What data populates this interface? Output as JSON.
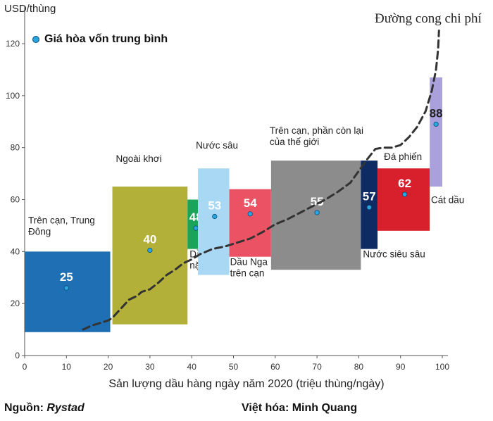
{
  "chart_data": {
    "type": "bar",
    "ylabel": "USD/thùng",
    "xlabel": "Sản lượng dầu hàng ngày năm 2020 (triệu thùng/ngày)",
    "xlim": [
      0,
      100
    ],
    "ylim": [
      0,
      125
    ],
    "xticks": [
      0,
      10,
      20,
      30,
      40,
      50,
      60,
      70,
      80,
      90,
      100
    ],
    "yticks": [
      0,
      20,
      40,
      60,
      80,
      100,
      120
    ],
    "legend": "Giá hòa vốn trung bình",
    "curve_label": "Đường cong chi phí",
    "segments": [
      {
        "name": "Trên cạn, Trung Đông",
        "x0": 0,
        "x1": 20.5,
        "low": 9,
        "high": 40,
        "avg": 25,
        "avg_x": 10,
        "avg_y": 26,
        "color": "#1f6fb5"
      },
      {
        "name": "Ngoài khơi",
        "x0": 21,
        "x1": 39,
        "low": 12,
        "high": 65,
        "avg": 40,
        "avg_x": 30,
        "avg_y": 40.5,
        "color": "#b2b038"
      },
      {
        "name": "Dầu nặng",
        "x0": 39,
        "x1": 41.5,
        "low": 41,
        "high": 60,
        "avg": 48,
        "avg_x": 41,
        "avg_y": 49,
        "color": "#1aa35a"
      },
      {
        "name": "Nước sâu",
        "x0": 41.5,
        "x1": 49,
        "low": 31,
        "high": 72,
        "avg": 53,
        "avg_x": 45.5,
        "avg_y": 53.5,
        "color": "#a9d8f5"
      },
      {
        "name": "Dầu Nga trên cạn",
        "x0": 49,
        "x1": 59,
        "low": 38,
        "high": 64,
        "avg": 54,
        "avg_x": 54,
        "avg_y": 54.5,
        "color": "#eb5364"
      },
      {
        "name": "Trên cạn, phần còn lại của thế giới",
        "x0": 59,
        "x1": 80.5,
        "low": 33,
        "high": 75,
        "avg": 55,
        "avg_x": 70,
        "avg_y": 55,
        "color": "#8c8c8c"
      },
      {
        "name": "Nước siêu sâu",
        "x0": 80.5,
        "x1": 84.5,
        "low": 41,
        "high": 75,
        "avg": 57,
        "avg_x": 82.5,
        "avg_y": 57,
        "color": "#0e2c63"
      },
      {
        "name": "Đá phiến",
        "x0": 84.5,
        "x1": 97,
        "low": 48,
        "high": 72,
        "avg": 62,
        "avg_x": 91,
        "avg_y": 62,
        "color": "#d8202c"
      },
      {
        "name": "Cát dầu",
        "x0": 97,
        "x1": 100,
        "low": 65,
        "high": 107,
        "avg": 88,
        "avg_x": 98.5,
        "avg_y": 89,
        "color": "#a9a0dc"
      }
    ],
    "cost_curve": [
      [
        14,
        10
      ],
      [
        16,
        11.5
      ],
      [
        18,
        12.5
      ],
      [
        20,
        13.5
      ],
      [
        21,
        14.5
      ],
      [
        23,
        18
      ],
      [
        25,
        21.5
      ],
      [
        27,
        23
      ],
      [
        28,
        24.5
      ],
      [
        30,
        25.5
      ],
      [
        32,
        28
      ],
      [
        34,
        31
      ],
      [
        36,
        33
      ],
      [
        38,
        35.5
      ],
      [
        40,
        37
      ],
      [
        42,
        39
      ],
      [
        45,
        41
      ],
      [
        48,
        42
      ],
      [
        51,
        43.5
      ],
      [
        54,
        45
      ],
      [
        57,
        47.5
      ],
      [
        60,
        50.5
      ],
      [
        63,
        52.5
      ],
      [
        66,
        55
      ],
      [
        69,
        57.5
      ],
      [
        72,
        60
      ],
      [
        75,
        63
      ],
      [
        78,
        66.5
      ],
      [
        80,
        71
      ],
      [
        82,
        75.5
      ],
      [
        84,
        79.5
      ],
      [
        86,
        80
      ],
      [
        88,
        80
      ],
      [
        90,
        81
      ],
      [
        92,
        84
      ],
      [
        94,
        88
      ],
      [
        96,
        94
      ],
      [
        97.5,
        102
      ],
      [
        98.5,
        110
      ],
      [
        99,
        118
      ],
      [
        99.2,
        125
      ]
    ]
  },
  "footer": {
    "source_prefix": "Nguồn: ",
    "source_name": "Rystad",
    "credit": "Việt hóa: Minh Quang"
  }
}
